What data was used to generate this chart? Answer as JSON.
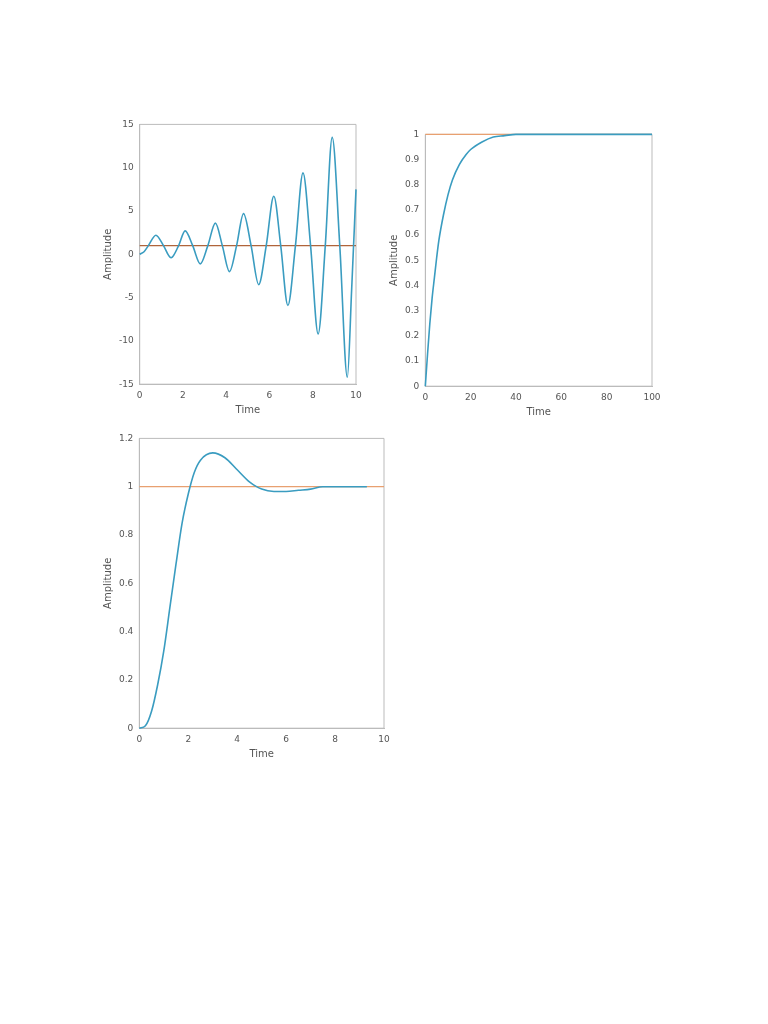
{
  "chart_data": [
    {
      "type": "line",
      "xlabel": "Time",
      "ylabel": "Amplitude",
      "xlim": [
        0,
        10
      ],
      "ylim": [
        -15,
        15
      ],
      "xticks": [
        0,
        2,
        4,
        6,
        8,
        10
      ],
      "yticks": [
        -15,
        -10,
        -5,
        0,
        5,
        10,
        15
      ],
      "grid": false,
      "legend": false,
      "marker": "none",
      "series": [
        {
          "color": "#3a9cc0",
          "x": [
            0,
            0.2,
            0.4,
            0.75,
            1.1,
            1.45,
            1.8,
            2.1,
            2.45,
            2.8,
            3.15,
            3.5,
            3.82,
            4.15,
            4.48,
            4.8,
            5.15,
            5.5,
            5.85,
            6.2,
            6.52,
            6.85,
            7.2,
            7.55,
            7.9,
            8.25,
            8.58,
            8.9,
            9.25,
            9.6,
            9.8,
            10
          ],
          "values": [
            0,
            0.3,
            1,
            2.2,
            1,
            -0.4,
            1,
            2.7,
            1,
            -1.1,
            1,
            3.6,
            1,
            -2,
            1,
            4.7,
            1,
            -3.5,
            1,
            6.7,
            1,
            -5.9,
            1,
            9.4,
            1,
            -9.2,
            1,
            13.5,
            1,
            -14.2,
            -4,
            7.5
          ]
        }
      ],
      "ref_lines": [
        {
          "axis": "y",
          "value": 1,
          "color": "#b0643a"
        }
      ]
    },
    {
      "type": "line",
      "xlabel": "Time",
      "ylabel": "Amplitude",
      "xlim": [
        0,
        100
      ],
      "ylim": [
        0,
        1
      ],
      "xticks": [
        0,
        20,
        40,
        60,
        80,
        100
      ],
      "yticks": [
        0,
        0.1,
        0.2,
        0.3,
        0.4,
        0.5,
        0.6,
        0.7,
        0.8,
        0.9,
        1
      ],
      "grid": false,
      "legend": false,
      "marker": "none",
      "series": [
        {
          "color": "#3a9cc0",
          "x": [
            0,
            1,
            2,
            3,
            4,
            5,
            6,
            8,
            10,
            12,
            15,
            18,
            20,
            25,
            30,
            35,
            40,
            60,
            80,
            100
          ],
          "values": [
            0,
            0.13,
            0.25,
            0.35,
            0.43,
            0.51,
            0.58,
            0.68,
            0.76,
            0.82,
            0.88,
            0.92,
            0.94,
            0.97,
            0.99,
            0.995,
            1,
            1,
            1,
            1
          ]
        }
      ],
      "ref_lines": [
        {
          "axis": "y",
          "value": 1,
          "color": "#e8a070"
        }
      ]
    },
    {
      "type": "line",
      "xlabel": "Time",
      "ylabel": "Amplitude",
      "xlim": [
        0,
        10
      ],
      "ylim": [
        0,
        1.2
      ],
      "xticks": [
        0,
        2,
        4,
        6,
        8,
        10
      ],
      "yticks": [
        0,
        0.2,
        0.4,
        0.6,
        0.8,
        1,
        1.2
      ],
      "grid": false,
      "legend": false,
      "marker": "none",
      "series": [
        {
          "color": "#3a9cc0",
          "x": [
            0,
            0.25,
            0.5,
            0.75,
            1,
            1.25,
            1.5,
            1.75,
            2,
            2.25,
            2.5,
            3,
            3.5,
            4,
            4.5,
            5,
            5.5,
            6,
            6.5,
            7,
            7.5,
            8,
            9.3
          ],
          "values": [
            0,
            0.01,
            0.07,
            0.18,
            0.32,
            0.5,
            0.68,
            0.85,
            0.97,
            1.06,
            1.11,
            1.14,
            1.12,
            1.07,
            1.02,
            0.99,
            0.98,
            0.98,
            0.985,
            0.99,
            1,
            1,
            1
          ]
        }
      ],
      "ref_lines": [
        {
          "axis": "y",
          "value": 1,
          "color": "#e8a070"
        }
      ]
    }
  ]
}
